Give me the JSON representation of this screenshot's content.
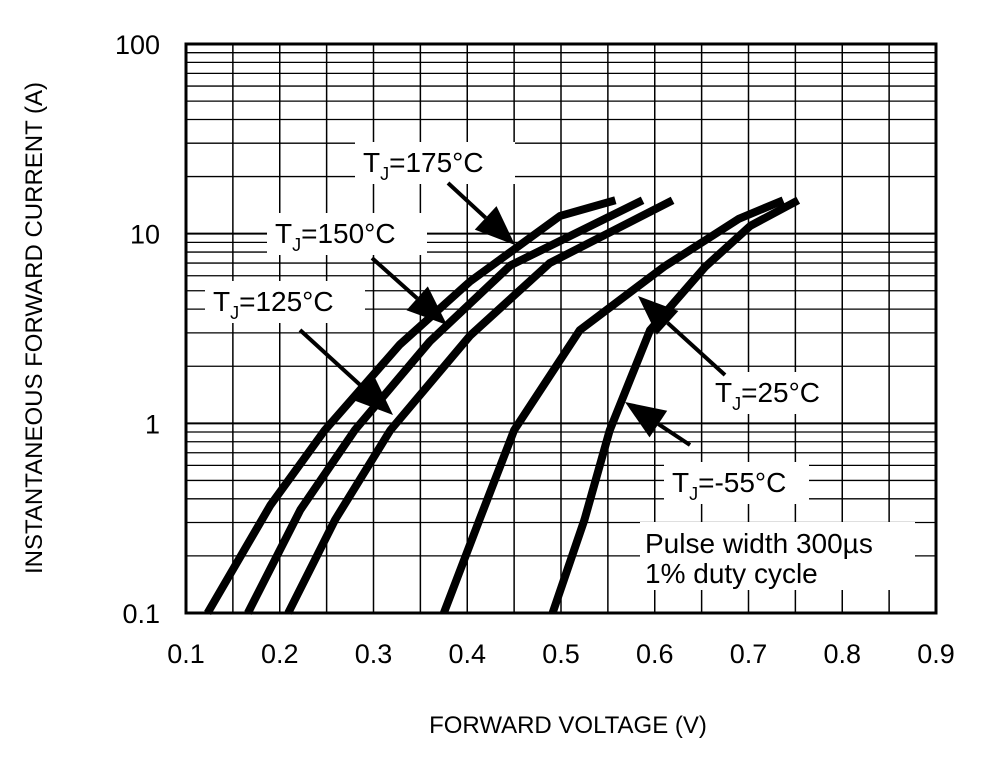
{
  "chart_data": {
    "type": "line",
    "xlabel": "FORWARD VOLTAGE (V)",
    "ylabel": "INSTANTANEOUS FORWARD CURRENT (A)",
    "xlim": [
      0.1,
      0.9
    ],
    "ylim": [
      0.1,
      100
    ],
    "yscale": "log",
    "grid": true,
    "x_ticks": [
      "0.1",
      "0.2",
      "0.3",
      "0.4",
      "0.5",
      "0.6",
      "0.7",
      "0.8",
      "0.9"
    ],
    "y_ticks": [
      "0.1",
      "1",
      "10",
      "100"
    ],
    "series": [
      {
        "name": "TJ=175°C",
        "label_main": "T",
        "label_sub": "J",
        "label_rest": "=175°C",
        "x": [
          0.123,
          0.19,
          0.248,
          0.328,
          0.403,
          0.499,
          0.558
        ],
        "y": [
          0.1,
          0.37,
          0.92,
          2.6,
          5.6,
          12.4,
          15
        ]
      },
      {
        "name": "TJ=150°C",
        "label_main": "T",
        "label_sub": "J",
        "label_rest": "=150°C",
        "x": [
          0.166,
          0.222,
          0.28,
          0.36,
          0.446,
          0.587
        ],
        "y": [
          0.1,
          0.35,
          0.92,
          2.7,
          6.8,
          15
        ]
      },
      {
        "name": "TJ=125°C",
        "label_main": "T",
        "label_sub": "J",
        "label_rest": "=125°C",
        "x": [
          0.209,
          0.259,
          0.318,
          0.403,
          0.488,
          0.619
        ],
        "y": [
          0.1,
          0.31,
          0.92,
          2.9,
          7,
          15
        ]
      },
      {
        "name": "TJ=25°C",
        "label_main": "T",
        "label_sub": "J",
        "label_rest": "=25°C",
        "x": [
          0.375,
          0.413,
          0.45,
          0.52,
          0.61,
          0.69,
          0.737
        ],
        "y": [
          0.1,
          0.31,
          0.92,
          3.1,
          6.7,
          12,
          15
        ]
      },
      {
        "name": "TJ=-55°C",
        "label_main": "T",
        "label_sub": "J",
        "label_rest": "=-55°C",
        "x": [
          0.491,
          0.525,
          0.552,
          0.595,
          0.654,
          0.702,
          0.753
        ],
        "y": [
          0.1,
          0.31,
          0.92,
          3.1,
          6.7,
          11,
          15
        ]
      }
    ],
    "annotations": [
      "Pulse width 300µs",
      "1% duty cycle"
    ]
  }
}
